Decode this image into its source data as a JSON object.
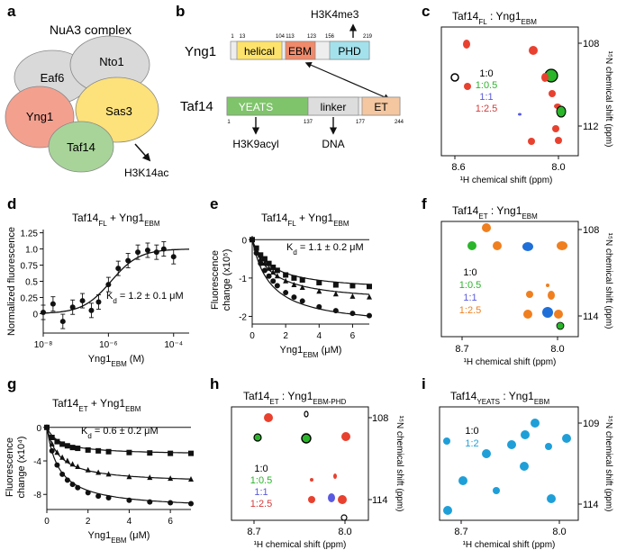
{
  "panel_letters": {
    "a": "a",
    "b": "b",
    "c": "c",
    "d": "d",
    "e": "e",
    "f": "f",
    "g": "g",
    "h": "h",
    "i": "i"
  },
  "panel_a": {
    "title": "NuA3 complex",
    "subunits": [
      "Eaf6",
      "Nto1",
      "Yng1",
      "Sas3",
      "Taf14"
    ],
    "mark": "H3K14ac",
    "colors": {
      "gray": "#d9d9d9",
      "red": "#f4a08f",
      "yellow": "#fde17a",
      "green": "#a8d49a"
    }
  },
  "panel_b": {
    "yng1": {
      "name": "Yng1",
      "domains": [
        "helical",
        "EBM",
        "PHD"
      ],
      "ticks": [
        "1",
        "13",
        "104",
        "113",
        "123",
        "156",
        "219"
      ],
      "colors": {
        "helical": "#fde36b",
        "EBM": "#f08a6a",
        "PHD": "#a3e2ec"
      }
    },
    "taf14": {
      "name": "Taf14",
      "domains": [
        "YEATS",
        "linker",
        "ET"
      ],
      "ticks": [
        "1",
        "137",
        "177",
        "244"
      ],
      "colors": {
        "YEATS": "#7fc46b",
        "linker": "#dddddd",
        "ET": "#f4c7a0"
      }
    },
    "ligands": {
      "H3K4me3": "H3K4me3",
      "H3K9acyl": "H3K9acyl",
      "DNA": "DNA"
    }
  },
  "nmr_axes": {
    "x_label": "¹H chemical shift (ppm)",
    "y_label": "¹⁵N chemical shift (ppm)"
  },
  "panel_c": {
    "title_main": "Taf14",
    "title_sub1": "FL",
    "title_sep": " : Yng1",
    "title_sub2": "EBM",
    "x_ticks": [
      "8.6",
      "8.0"
    ],
    "y_ticks": [
      "108",
      "112"
    ],
    "legend": [
      "1:0",
      "1:0.5",
      "1:1",
      "1:2.5"
    ],
    "legend_colors": [
      "#000000",
      "#2ab52a",
      "#5a5ae0",
      "#d43b3b"
    ]
  },
  "panel_f": {
    "title_main": "Taf14",
    "title_sub1": "ET",
    "title_sep": " : Yng1",
    "title_sub2": "EBM",
    "x_ticks": [
      "8.7",
      "8.0"
    ],
    "y_ticks": [
      "108",
      "114"
    ],
    "legend": [
      "1:0",
      "1:0.5",
      "1:1",
      "1:2.5"
    ],
    "legend_colors": [
      "#000000",
      "#2ab52a",
      "#5a5ae0",
      "#f07f1f"
    ]
  },
  "panel_h": {
    "title_main": "Taf14",
    "title_sub1": "ET",
    "title_sep": " : Yng1",
    "title_sub2": "EBM-PHD",
    "x_ticks": [
      "8.7",
      "8.0"
    ],
    "y_ticks": [
      "108",
      "114"
    ],
    "legend": [
      "1:0",
      "1:0.5",
      "1:1",
      "1:2.5"
    ],
    "legend_colors": [
      "#000000",
      "#2ab52a",
      "#5a5ae0",
      "#d43b3b"
    ]
  },
  "panel_i": {
    "title_main": "Taf14",
    "title_sub1": "YEATS",
    "title_sep": " : Yng1",
    "title_sub2": "EBM",
    "x_ticks": [
      "8.7",
      "8.0"
    ],
    "y_ticks": [
      "109",
      "114"
    ],
    "legend": [
      "1:0",
      "1:2"
    ],
    "legend_colors": [
      "#000000",
      "#1f9fd8"
    ]
  },
  "chart_data": [
    {
      "id": "d",
      "type": "scatter",
      "title": "Taf14FL + Yng1EBM",
      "xlabel": "Yng1EBM (M)",
      "ylabel": "Normalized fluorescence",
      "xscale": "log",
      "xlim": [
        1e-08,
        0.0003
      ],
      "ylim": [
        -0.3,
        1.3
      ],
      "y_ticks": [
        "0",
        "0.25",
        "0.5",
        "0.75",
        "1.0",
        "1.25"
      ],
      "x_ticks": [
        "10⁻⁸",
        "10⁻⁶",
        "10⁻⁴"
      ],
      "annotation": "Kd = 1.2 ± 0.1 μM",
      "kd_text": "K",
      "kd_sub": "d",
      "kd_value": " = 1.2 ± 0.1 μM",
      "x": [
        1e-08,
        2e-08,
        4e-08,
        8e-08,
        1.6e-07,
        3e-07,
        5e-07,
        1e-06,
        2e-06,
        4e-06,
        8e-06,
        1.6e-05,
        3e-05,
        5e-05,
        0.0001
      ],
      "y": [
        0.02,
        0.15,
        -0.12,
        0.1,
        0.2,
        0.05,
        0.18,
        0.45,
        0.7,
        0.82,
        0.95,
        0.98,
        0.95,
        1.0,
        0.88
      ],
      "fit_kd": 1.2e-06
    },
    {
      "id": "e",
      "type": "scatter",
      "title": "Taf14FL + Yng1EBM",
      "xlabel": "Yng1EBM (μM)",
      "ylabel": "Fluorescence change (x10⁵)",
      "xlim": [
        0,
        7
      ],
      "ylim": [
        -2.2,
        0.1
      ],
      "y_ticks": [
        "0",
        "-1",
        "-2"
      ],
      "x_ticks": [
        "0",
        "2",
        "4",
        "6"
      ],
      "annotation": "Kd = 1.1 ± 0.2 μM",
      "kd_text": "K",
      "kd_sub": "d",
      "kd_value": " = 1.1 ± 0.2 μM",
      "series": [
        {
          "name": "s1",
          "marker": "square",
          "x": [
            0,
            0.25,
            0.5,
            0.75,
            1,
            1.25,
            1.5,
            2,
            2.5,
            3,
            4,
            5,
            6,
            7
          ],
          "y": [
            0,
            -0.22,
            -0.4,
            -0.5,
            -0.62,
            -0.72,
            -0.8,
            -0.92,
            -1.0,
            -1.05,
            -1.12,
            -1.18,
            -1.2,
            -1.22
          ],
          "fit_max": -1.35
        },
        {
          "name": "s2",
          "marker": "triangle",
          "x": [
            0,
            0.25,
            0.5,
            0.75,
            1,
            1.25,
            1.5,
            2,
            2.5,
            3,
            4,
            5,
            6,
            7
          ],
          "y": [
            0,
            -0.28,
            -0.5,
            -0.62,
            -0.75,
            -0.85,
            -0.95,
            -1.08,
            -1.18,
            -1.25,
            -1.35,
            -1.42,
            -1.48,
            -1.5
          ],
          "fit_max": -1.65
        },
        {
          "name": "s3",
          "marker": "circle",
          "x": [
            0,
            0.25,
            0.5,
            0.75,
            1,
            1.25,
            1.5,
            2,
            2.5,
            3,
            4,
            5,
            6,
            7
          ],
          "y": [
            0,
            -0.35,
            -0.62,
            -0.8,
            -0.95,
            -1.08,
            -1.2,
            -1.38,
            -1.5,
            -1.6,
            -1.75,
            -1.85,
            -1.92,
            -1.98
          ],
          "fit_max": -2.3
        }
      ],
      "fit_kd": 1.1
    },
    {
      "id": "g",
      "type": "scatter",
      "title": "Taf14ET + Yng1EBM",
      "xlabel": "Yng1EBM (μM)",
      "ylabel": "Fluorescence change (x10⁴)",
      "xlim": [
        0,
        7
      ],
      "ylim": [
        -9.8,
        0.3
      ],
      "y_ticks": [
        "0",
        "-4",
        "-8"
      ],
      "x_ticks": [
        "0",
        "2",
        "4",
        "6"
      ],
      "annotation": "Kd = 0.6 ± 0.2 μM",
      "kd_text": "K",
      "kd_sub": "d",
      "kd_value": " = 0.6 ± 0.2 μM",
      "series": [
        {
          "name": "s1",
          "marker": "square",
          "x": [
            0,
            0.25,
            0.5,
            0.75,
            1,
            1.25,
            1.5,
            2,
            2.5,
            3,
            4,
            5,
            6,
            7
          ],
          "y": [
            0,
            -1.2,
            -1.7,
            -2.0,
            -2.2,
            -2.4,
            -2.5,
            -2.7,
            -2.8,
            -2.9,
            -3.0,
            -3.05,
            -3.1,
            -3.1
          ],
          "fit_max": -3.3
        },
        {
          "name": "s2",
          "marker": "triangle",
          "x": [
            0,
            0.25,
            0.5,
            0.75,
            1,
            1.25,
            1.5,
            2,
            2.5,
            3,
            4,
            5,
            6,
            7
          ],
          "y": [
            0,
            -2.0,
            -3.0,
            -3.6,
            -4.0,
            -4.4,
            -4.7,
            -5.1,
            -5.4,
            -5.6,
            -5.9,
            -6.0,
            -6.1,
            -6.2
          ],
          "fit_max": -6.7
        },
        {
          "name": "s3",
          "marker": "circle",
          "x": [
            0,
            0.25,
            0.5,
            0.75,
            1,
            1.25,
            1.5,
            2,
            2.5,
            3,
            4,
            5,
            6,
            7
          ],
          "y": [
            0,
            -2.8,
            -4.5,
            -5.6,
            -6.3,
            -6.8,
            -7.2,
            -7.8,
            -8.2,
            -8.4,
            -8.7,
            -8.9,
            -9.0,
            -9.1
          ],
          "fit_max": -9.8
        }
      ],
      "fit_kd": 0.6
    }
  ]
}
